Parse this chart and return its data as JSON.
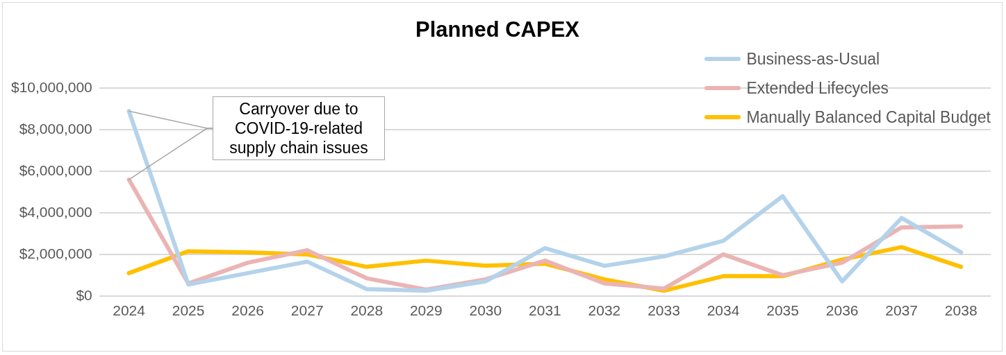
{
  "chart_data": {
    "type": "line",
    "title": "Planned CAPEX",
    "categories": [
      "2024",
      "2025",
      "2026",
      "2027",
      "2028",
      "2029",
      "2030",
      "2031",
      "2032",
      "2033",
      "2034",
      "2035",
      "2036",
      "2037",
      "2038"
    ],
    "series": [
      {
        "name": "Business-as-Usual",
        "color": "#b4d3eb",
        "values": [
          8900000,
          550000,
          1100000,
          1650000,
          330000,
          250000,
          700000,
          2300000,
          1450000,
          1900000,
          2650000,
          4800000,
          700000,
          3750000,
          2100000
        ]
      },
      {
        "name": "Extended Lifecycles",
        "color": "#ebb4b4",
        "values": [
          5600000,
          600000,
          1600000,
          2200000,
          850000,
          300000,
          800000,
          1700000,
          600000,
          350000,
          2000000,
          1000000,
          1600000,
          3300000,
          3350000
        ]
      },
      {
        "name": "Manually Balanced Capital Budget",
        "color": "#ffc000",
        "values": [
          1100000,
          2150000,
          2100000,
          2000000,
          1400000,
          1700000,
          1450000,
          1550000,
          800000,
          250000,
          950000,
          950000,
          1750000,
          2350000,
          1400000
        ]
      }
    ],
    "ylim": [
      0,
      10000000
    ],
    "yticks": [
      {
        "value": 0,
        "label": "$0"
      },
      {
        "value": 2000000,
        "label": "$2,000,000"
      },
      {
        "value": 4000000,
        "label": "$4,000,000"
      },
      {
        "value": 6000000,
        "label": "$6,000,000"
      },
      {
        "value": 8000000,
        "label": "$8,000,000"
      },
      {
        "value": 10000000,
        "label": "$10,000,000"
      }
    ],
    "grid": "y",
    "legend": "top right",
    "marker": "none",
    "line_style": "solid",
    "annotations": [
      {
        "text": "Carryover due to COVID-19-related supply chain issues",
        "x": "2024",
        "y": 8900000
      }
    ]
  }
}
